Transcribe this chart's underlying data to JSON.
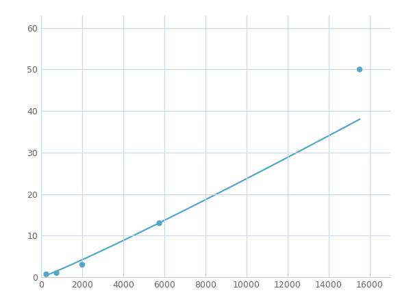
{
  "x_points": [
    250,
    750,
    2000,
    5750,
    15500
  ],
  "y_points": [
    0.7,
    1.0,
    3.0,
    13.0,
    50.0
  ],
  "line_color": "#4fa8c8",
  "marker_color": "#4fa8c8",
  "marker_size": 6,
  "line_width": 1.6,
  "xlim": [
    0,
    17000
  ],
  "ylim": [
    0,
    63
  ],
  "xticks": [
    0,
    2000,
    4000,
    6000,
    8000,
    10000,
    12000,
    14000,
    16000
  ],
  "yticks": [
    0,
    10,
    20,
    30,
    40,
    50,
    60
  ],
  "grid_color": "#c8d8e8",
  "grid_linewidth": 0.8,
  "background_color": "#ffffff",
  "figure_bg": "#ffffff"
}
